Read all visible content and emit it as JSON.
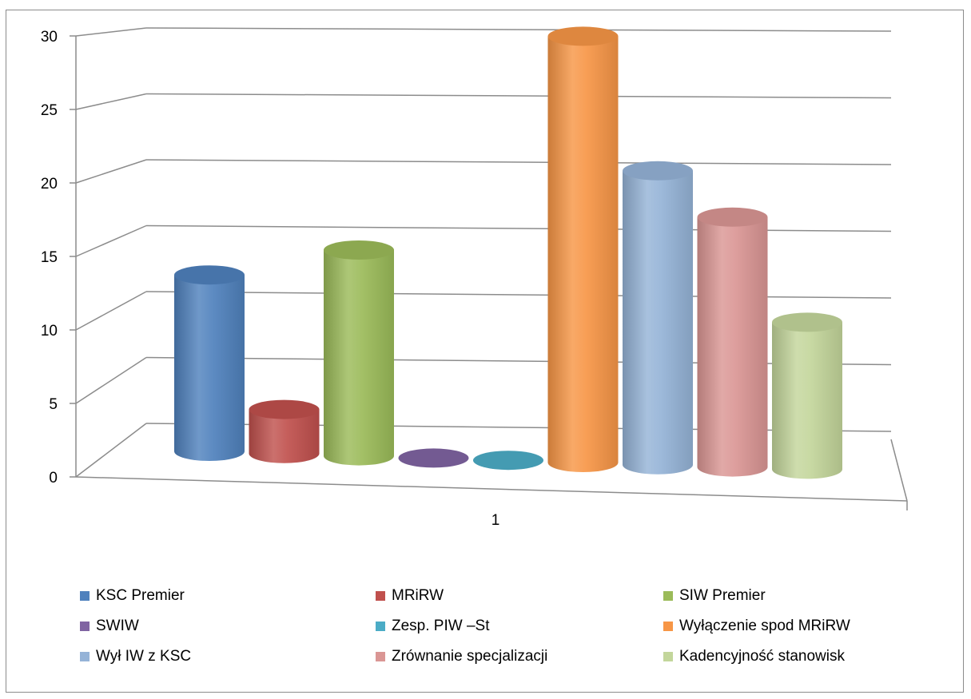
{
  "chart_data": {
    "type": "bar",
    "style": "3d-cylinder",
    "categories": [
      "1"
    ],
    "series": [
      {
        "name": "KSC Premier",
        "values": [
          12
        ],
        "color": "#4F81BD"
      },
      {
        "name": "MRiRW",
        "values": [
          3
        ],
        "color": "#C0504D"
      },
      {
        "name": "SIW Premier",
        "values": [
          14
        ],
        "color": "#9BBB59"
      },
      {
        "name": "SWIW",
        "values": [
          0
        ],
        "color": "#8064A2"
      },
      {
        "name": "Zesp.  PIW –St",
        "values": [
          0
        ],
        "color": "#4BACC6"
      },
      {
        "name": "Wyłączenie spod MRiRW",
        "values": [
          29
        ],
        "color": "#F79646"
      },
      {
        "name": "Wył IW z KSC",
        "values": [
          20
        ],
        "color": "#95B3D7"
      },
      {
        "name": "Zrównanie specjalizacji",
        "values": [
          17
        ],
        "color": "#DA9694"
      },
      {
        "name": "Kadencyjność stanowisk",
        "values": [
          10
        ],
        "color": "#C3D69B"
      }
    ],
    "ylim": [
      0,
      30
    ],
    "yticks": [
      "0",
      "5",
      "10",
      "15",
      "20",
      "25",
      "30"
    ],
    "grid": true,
    "legend_position": "bottom"
  }
}
